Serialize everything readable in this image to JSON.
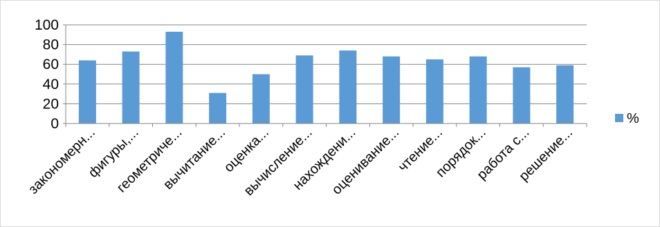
{
  "chart_data": {
    "type": "bar",
    "title": "",
    "xlabel": "",
    "ylabel": "",
    "categories": [
      "закономерн...",
      "фигуры,...",
      "геометриче...",
      "вычитание...",
      "оценка...",
      "вычисление...",
      "нахождени...",
      "оценивание...",
      "чтение...",
      "порядок...",
      "работа с...",
      "решение..."
    ],
    "series": [
      {
        "name": "%",
        "color": "#5b9bd5",
        "values": [
          64,
          73,
          93,
          31,
          50,
          69,
          74,
          68,
          65,
          68,
          57,
          59
        ]
      }
    ],
    "ylim": [
      0,
      100
    ],
    "yticks": [
      "0",
      "20",
      "40",
      "60",
      "80",
      "100"
    ],
    "grid": true,
    "legend": "right"
  }
}
